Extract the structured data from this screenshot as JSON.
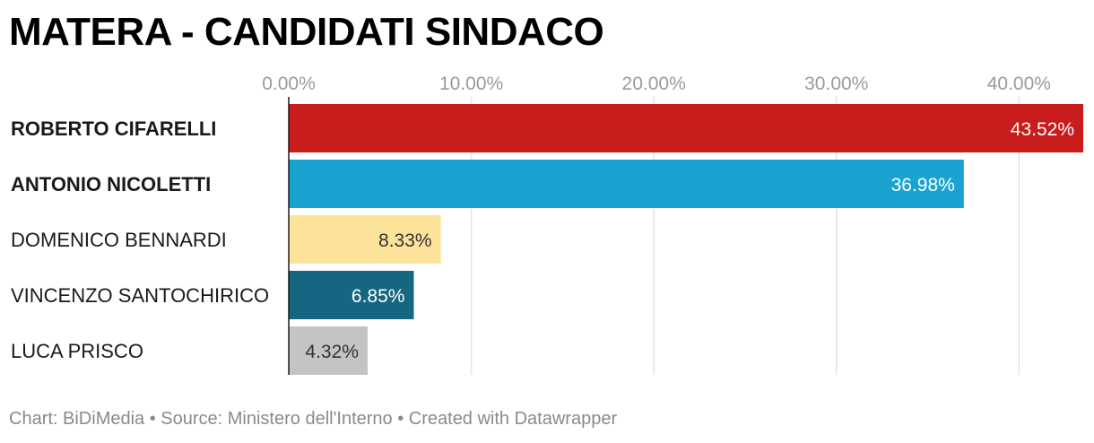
{
  "chart_data": {
    "type": "bar",
    "orientation": "horizontal",
    "title": "MATERA - CANDIDATI SINDACO",
    "categories": [
      "ROBERTO CIFARELLI",
      "ANTONIO NICOLETTI",
      "DOMENICO BENNARDI",
      "VINCENZO SANTOCHIRICO",
      "LUCA PRISCO"
    ],
    "values": [
      43.52,
      36.98,
      8.33,
      6.85,
      4.32
    ],
    "value_labels": [
      "43.52%",
      "36.98%",
      "8.33%",
      "6.85%",
      "4.32%"
    ],
    "bold_categories": [
      true,
      true,
      false,
      false,
      false
    ],
    "colors": [
      "#c91c1c",
      "#1aa3d0",
      "#fde39a",
      "#156680",
      "#c4c4c4"
    ],
    "label_colors": [
      "#ffffff",
      "#ffffff",
      "#333333",
      "#ffffff",
      "#333333"
    ],
    "xlim": [
      0,
      43.52
    ],
    "ticks": [
      0,
      10,
      20,
      30,
      40
    ],
    "tick_labels": [
      "0.00%",
      "10.00%",
      "20.00%",
      "30.00%",
      "40.00%"
    ],
    "tick_position": "top",
    "grid": true,
    "xlabel": "",
    "ylabel": ""
  },
  "footer": {
    "text": "Chart: BiDiMedia • Source: Ministero dell'Interno • Created with Datawrapper"
  }
}
